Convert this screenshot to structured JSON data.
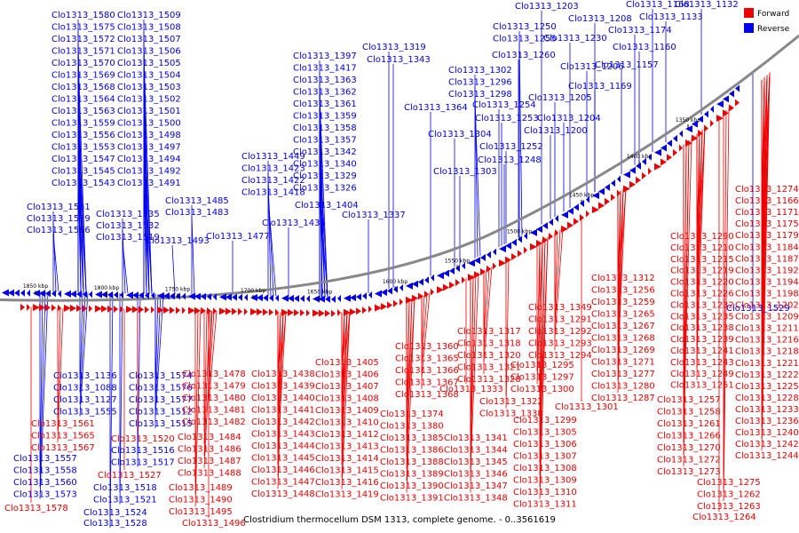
{
  "title": "Clostridium thermocellum DSM 1313, complete genome. - 0..3561619",
  "legend": {
    "forward": {
      "label": "Forward",
      "color": "#ee0000"
    },
    "reverse": {
      "label": "Reverse",
      "color": "#0000ee"
    }
  },
  "scale_ticks": [
    "1850 kbp",
    "1800 kbp",
    "1750 kbp",
    "1700 kbp",
    "1650 kbp",
    "1600 kbp",
    "1550 kbp",
    "1500 kbp",
    "1450 kbp",
    "1400 kbp",
    "1350 kbp"
  ],
  "reverse_labels": [
    "Clo1313_1580",
    "Clo1313_1575",
    "Clo1313_1572",
    "Clo1313_1571",
    "Clo1313_1570",
    "Clo1313_1569",
    "Clo1313_1568",
    "Clo1313_1564",
    "Clo1313_1563",
    "Clo1313_1559",
    "Clo1313_1556",
    "Clo1313_1553",
    "Clo1313_1547",
    "Clo1313_1545",
    "Clo1313_1543",
    "Clo1313_1581",
    "Clo1313_1579",
    "Clo1313_1566",
    "Clo1313_1509",
    "Clo1313_1508",
    "Clo1313_1507",
    "Clo1313_1506",
    "Clo1313_1505",
    "Clo1313_1504",
    "Clo1313_1503",
    "Clo1313_1502",
    "Clo1313_1501",
    "Clo1313_1500",
    "Clo1313_1498",
    "Clo1313_1497",
    "Clo1313_1494",
    "Clo1313_1492",
    "Clo1313_1491",
    "Clo1313_1535",
    "Clo1313_1532",
    "Clo1313_1519",
    "Clo1313_1485",
    "Clo1313_1483",
    "Clo1313_1477",
    "Clo1313_1493",
    "Clo1313_1449",
    "Clo1313_1423",
    "Clo1313_1422",
    "Clo1313_1418",
    "Clo1313_1404",
    "Clo1313_1436",
    "Clo1313_1397",
    "Clo1313_1417",
    "Clo1313_1363",
    "Clo1313_1362",
    "Clo1313_1361",
    "Clo1313_1359",
    "Clo1313_1358",
    "Clo1313_1357",
    "Clo1313_1342",
    "Clo1313_1340",
    "Clo1313_1329",
    "Clo1313_1326",
    "Clo1313_1337",
    "Clo1313_1319",
    "Clo1313_1343",
    "Clo1313_1364",
    "Clo1313_1304",
    "Clo1313_1303",
    "Clo1313_1302",
    "Clo1313_1296",
    "Clo1313_1298",
    "Clo1313_1254",
    "Clo1313_1253",
    "Clo1313_1252",
    "Clo1313_1248",
    "Clo1313_1250",
    "Clo1313_1255",
    "Clo1313_1260",
    "Clo1313_1206",
    "Clo1313_1205",
    "Clo1313_1204",
    "Clo1313_1200",
    "Clo1313_1203",
    "Clo1313_1208",
    "Clo1313_1230",
    "Clo1313_1169",
    "Clo1313_1157",
    "Clo1313_1168",
    "Clo1313_1174",
    "Clo1313_1160",
    "Clo1313_1132",
    "Clo1313_1133",
    "Clo1313_1136",
    "Clo1313_1088",
    "Clo1313_1127",
    "Clo1313_1555",
    "Clo1313_1557",
    "Clo1313_1558",
    "Clo1313_1560",
    "Clo1313_1573",
    "Clo1313_1574",
    "Clo1313_1576",
    "Clo1313_1577",
    "Clo1313_1512",
    "Clo1313_1515",
    "Clo1313_1516",
    "Clo1313_1517",
    "Clo1313_1518",
    "Clo1313_1521",
    "Clo1313_1524",
    "Clo1313_1528",
    "Clo1313_1529",
    "Clo1313_1536",
    "Clo1313_1537",
    "Clo1313_1207"
  ],
  "forward_labels": [
    "Clo1313_1561",
    "Clo1313_1565",
    "Clo1313_1567",
    "Clo1313_1578",
    "Clo1313_1520",
    "Clo1313_1527",
    "Clo1313_1478",
    "Clo1313_1479",
    "Clo1313_1480",
    "Clo1313_1481",
    "Clo1313_1482",
    "Clo1313_1484",
    "Clo1313_1486",
    "Clo1313_1487",
    "Clo1313_1488",
    "Clo1313_1489",
    "Clo1313_1490",
    "Clo1313_1495",
    "Clo1313_1496",
    "Clo1313_1438",
    "Clo1313_1439",
    "Clo1313_1440",
    "Clo1313_1441",
    "Clo1313_1442",
    "Clo1313_1443",
    "Clo1313_1444",
    "Clo1313_1445",
    "Clo1313_1446",
    "Clo1313_1447",
    "Clo1313_1448",
    "Clo1313_1405",
    "Clo1313_1406",
    "Clo1313_1407",
    "Clo1313_1408",
    "Clo1313_1409",
    "Clo1313_1410",
    "Clo1313_1412",
    "Clo1313_1413",
    "Clo1313_1414",
    "Clo1313_1415",
    "Clo1313_1416",
    "Clo1313_1419",
    "Clo1313_1360",
    "Clo1313_1365",
    "Clo1313_1366",
    "Clo1313_1367",
    "Clo1313_1368",
    "Clo1313_1374",
    "Clo1313_1380",
    "Clo1313_1385",
    "Clo1313_1386",
    "Clo1313_1388",
    "Clo1313_1389",
    "Clo1313_1390",
    "Clo1313_1391",
    "Clo1313_1317",
    "Clo1313_1318",
    "Clo1313_1320",
    "Clo1313_1321",
    "Clo1313_1328",
    "Clo1313_1333",
    "Clo1313_1322",
    "Clo1313_1338",
    "Clo1313_1341",
    "Clo1313_1344",
    "Clo1313_1345",
    "Clo1313_1346",
    "Clo1313_1347",
    "Clo1313_1348",
    "Clo1313_1349",
    "Clo1313_1291",
    "Clo1313_1292",
    "Clo1313_1293",
    "Clo1313_1294",
    "Clo1313_1295",
    "Clo1313_1297",
    "Clo1313_1300",
    "Clo1313_1301",
    "Clo1313_1299",
    "Clo1313_1305",
    "Clo1313_1306",
    "Clo1313_1307",
    "Clo1313_1308",
    "Clo1313_1309",
    "Clo1313_1310",
    "Clo1313_1311",
    "Clo1313_1312",
    "Clo1313_1256",
    "Clo1313_1259",
    "Clo1313_1265",
    "Clo1313_1267",
    "Clo1313_1268",
    "Clo1313_1269",
    "Clo1313_1271",
    "Clo1313_1277",
    "Clo1313_1280",
    "Clo1313_1287",
    "Clo1313_1290",
    "Clo1313_1210",
    "Clo1313_1215",
    "Clo1313_1219",
    "Clo1313_1220",
    "Clo1313_1226",
    "Clo1313_1232",
    "Clo1313_1235",
    "Clo1313_1238",
    "Clo1313_1239",
    "Clo1313_1241",
    "Clo1313_1243",
    "Clo1313_1249",
    "Clo1313_1251",
    "Clo1313_1257",
    "Clo1313_1258",
    "Clo1313_1261",
    "Clo1313_1266",
    "Clo1313_1270",
    "Clo1313_1272",
    "Clo1313_1273",
    "Clo1313_1275",
    "Clo1313_1262",
    "Clo1313_1263",
    "Clo1313_1264",
    "Clo1313_1274",
    "Clo1313_1166",
    "Clo1313_1171",
    "Clo1313_1175",
    "Clo1313_1179",
    "Clo1313_1184",
    "Clo1313_1187",
    "Clo1313_1192",
    "Clo1313_1194",
    "Clo1313_1198",
    "Clo1313_1202",
    "Clo1313_1209",
    "Clo1313_1211",
    "Clo1313_1216",
    "Clo1313_1218",
    "Clo1313_1221",
    "Clo1313_1222",
    "Clo1313_1225",
    "Clo1313_1228",
    "Clo1313_1233",
    "Clo1313_1236",
    "Clo1313_1240",
    "Clo1313_1242",
    "Clo1313_1244",
    "Clo1313_1245"
  ]
}
